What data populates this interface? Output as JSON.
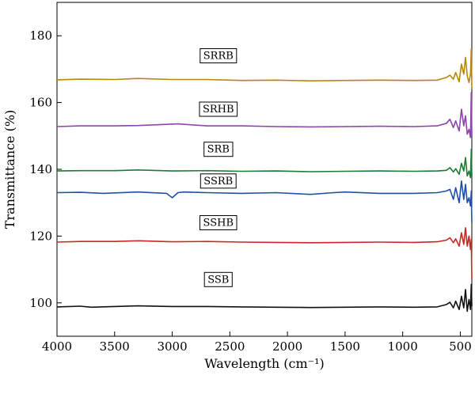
{
  "chart_data": {
    "type": "line",
    "title": "",
    "xlabel": "Wavelength (cm⁻¹)",
    "ylabel": "Transmittance (%)",
    "xlim": [
      4000,
      400
    ],
    "x_reversed": true,
    "ylim": [
      90,
      190
    ],
    "xticks": [
      4000,
      3500,
      3000,
      2500,
      2000,
      1500,
      1000,
      500
    ],
    "yticks": [
      100,
      120,
      140,
      160,
      180
    ],
    "grid": false,
    "legend": "labels-in-plot",
    "series": [
      {
        "name": "SRRB",
        "color": "#b8860b",
        "label_at": [
          2600,
          174
        ],
        "x": [
          4000,
          3800,
          3500,
          3300,
          3000,
          2700,
          2400,
          2100,
          1800,
          1500,
          1200,
          900,
          700,
          620,
          590,
          560,
          540,
          510,
          490,
          470,
          455,
          440,
          425,
          412,
          405,
          400
        ],
        "y": [
          166.8,
          167.0,
          166.9,
          167.2,
          166.9,
          166.9,
          166.6,
          166.7,
          166.5,
          166.6,
          166.7,
          166.6,
          166.7,
          167.5,
          168.2,
          167.0,
          169.0,
          166.2,
          171.5,
          168.5,
          173.5,
          168.0,
          166.0,
          168.5,
          176.0,
          164.0
        ]
      },
      {
        "name": "SRHB",
        "color": "#8e44ad",
        "label_at": [
          2600,
          158
        ],
        "x": [
          4000,
          3800,
          3500,
          3300,
          2950,
          2700,
          2400,
          2100,
          1800,
          1500,
          1200,
          900,
          700,
          620,
          590,
          560,
          540,
          510,
          490,
          470,
          455,
          440,
          425,
          412,
          405,
          400
        ],
        "y": [
          152.8,
          153.0,
          153.0,
          153.1,
          153.6,
          153.0,
          153.0,
          152.8,
          152.7,
          152.8,
          152.9,
          152.8,
          153.0,
          153.8,
          155.0,
          152.5,
          154.5,
          151.5,
          158.0,
          153.0,
          156.0,
          150.5,
          152.0,
          149.5,
          163.0,
          150.0
        ]
      },
      {
        "name": "SRB",
        "color": "#1e7b34",
        "label_at": [
          2600,
          146
        ],
        "x": [
          4000,
          3800,
          3500,
          3300,
          3000,
          2700,
          2400,
          2100,
          1800,
          1500,
          1200,
          900,
          700,
          620,
          590,
          560,
          540,
          510,
          490,
          470,
          455,
          440,
          425,
          412,
          405,
          400
        ],
        "y": [
          139.5,
          139.6,
          139.6,
          139.8,
          139.5,
          139.6,
          139.4,
          139.5,
          139.3,
          139.4,
          139.5,
          139.4,
          139.5,
          139.7,
          140.5,
          139.2,
          140.2,
          138.5,
          141.8,
          139.5,
          143.5,
          138.0,
          139.5,
          137.5,
          146.0,
          138.0
        ]
      },
      {
        "name": "SSRB",
        "color": "#1f4fa8",
        "label_at": [
          2600,
          136.5
        ],
        "x": [
          4000,
          3800,
          3600,
          3300,
          3050,
          3000,
          2950,
          2900,
          2700,
          2400,
          2100,
          1800,
          1600,
          1500,
          1200,
          900,
          700,
          620,
          590,
          560,
          540,
          510,
          490,
          470,
          455,
          440,
          425,
          412,
          405,
          400
        ],
        "y": [
          133.0,
          133.1,
          132.8,
          133.2,
          132.8,
          131.5,
          133.0,
          133.2,
          133.0,
          132.8,
          133.0,
          132.5,
          133.0,
          133.2,
          132.8,
          132.8,
          133.0,
          133.5,
          134.0,
          131.0,
          134.5,
          130.0,
          136.5,
          131.0,
          135.5,
          130.0,
          131.5,
          129.0,
          133.5,
          124.0
        ]
      },
      {
        "name": "SSHB",
        "color": "#c62828",
        "label_at": [
          2600,
          124
        ],
        "x": [
          4000,
          3800,
          3500,
          3300,
          3000,
          2700,
          2400,
          2100,
          1800,
          1500,
          1200,
          900,
          700,
          620,
          590,
          560,
          540,
          510,
          490,
          470,
          455,
          440,
          425,
          412,
          405,
          400
        ],
        "y": [
          118.2,
          118.4,
          118.4,
          118.6,
          118.3,
          118.4,
          118.2,
          118.1,
          118.0,
          118.1,
          118.2,
          118.1,
          118.3,
          118.8,
          119.5,
          118.0,
          119.2,
          117.0,
          121.0,
          117.5,
          122.5,
          117.0,
          120.0,
          116.0,
          119.0,
          107.0
        ]
      },
      {
        "name": "SSB",
        "color": "#111111",
        "label_at": [
          2600,
          107
        ],
        "x": [
          4000,
          3800,
          3700,
          3500,
          3300,
          3000,
          2700,
          2400,
          2100,
          1800,
          1500,
          1200,
          900,
          700,
          620,
          590,
          560,
          540,
          510,
          490,
          470,
          455,
          440,
          425,
          412,
          405,
          400
        ],
        "y": [
          98.8,
          99.0,
          98.7,
          98.9,
          99.1,
          98.9,
          98.9,
          98.8,
          98.7,
          98.6,
          98.7,
          98.8,
          98.7,
          98.8,
          99.5,
          100.2,
          98.5,
          100.5,
          98.0,
          102.0,
          98.5,
          104.0,
          97.5,
          101.0,
          98.0,
          105.5,
          99.0
        ]
      }
    ]
  }
}
